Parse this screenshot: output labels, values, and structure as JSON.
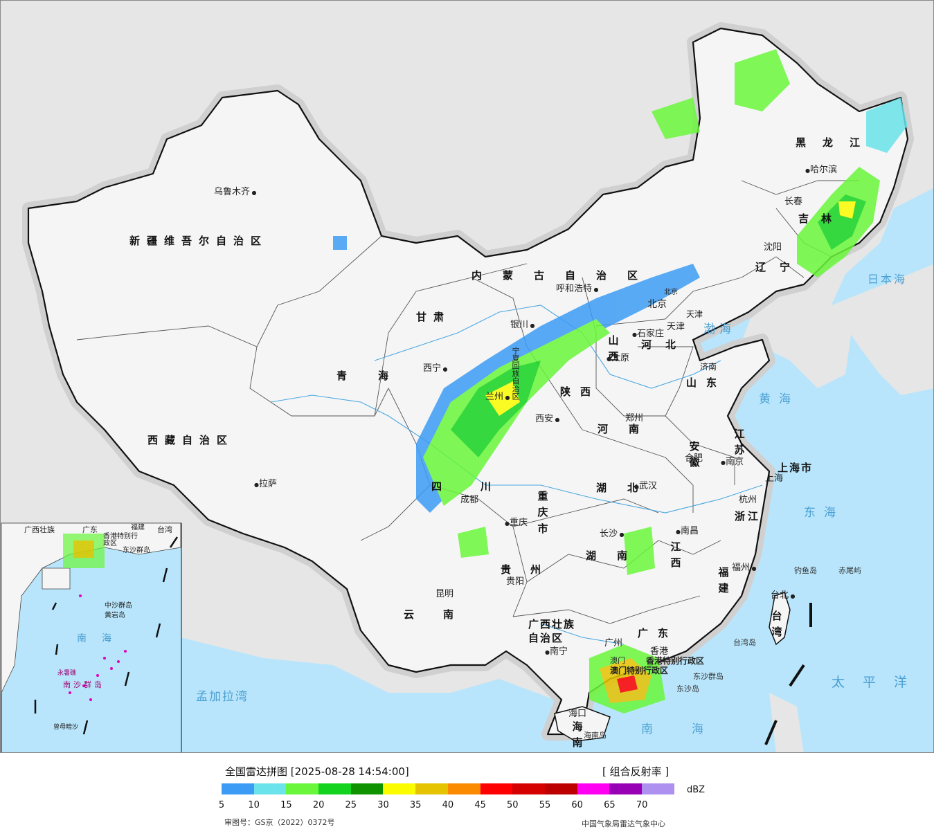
{
  "colors": {
    "ocean": "#b8e5fb",
    "land_outside": "#e6e6e6",
    "land_china": "#f5f5f5",
    "border": "#111111",
    "rivers": "#4aa8e0"
  },
  "map": {
    "provinces": [
      "新疆维吾尔自治区",
      "西藏自治区",
      "青海",
      "甘肃",
      "内蒙古自治区",
      "黑龙江",
      "吉林",
      "辽宁",
      "河北",
      "山西",
      "陕西",
      "宁夏回族自治区",
      "山东",
      "河南",
      "江苏",
      "安徽",
      "湖北",
      "四川",
      "重庆市",
      "贵州",
      "云南",
      "湖南",
      "江西",
      "浙江",
      "福建",
      "广东",
      "广西壮族自治区",
      "海南",
      "台湾",
      "上海市",
      "北京",
      "天津",
      "香港特别行政区",
      "澳门特别行政区"
    ],
    "cities": [
      "乌鲁木齐",
      "拉萨",
      "西宁",
      "兰州",
      "银川",
      "呼和浩特",
      "北京",
      "天津",
      "石家庄",
      "太原",
      "西安",
      "郑州",
      "济南",
      "哈尔滨",
      "长春",
      "沈阳",
      "合肥",
      "南京",
      "上海",
      "杭州",
      "武汉",
      "成都",
      "重庆",
      "贵阳",
      "昆明",
      "长沙",
      "南昌",
      "福州",
      "台北",
      "南宁",
      "广州",
      "香港",
      "澳门",
      "海口"
    ],
    "seas": [
      "渤海",
      "黄海",
      "东海",
      "日本海",
      "太平洋",
      "南海",
      "孟加拉湾"
    ],
    "islands": [
      "钓鱼岛",
      "赤尾屿",
      "台湾岛",
      "东沙群岛",
      "东沙岛",
      "海南岛"
    ],
    "inset": {
      "labels": [
        "广西壮族",
        "广东",
        "福建",
        "台湾",
        "香港特别行政区",
        "东沙群岛",
        "中沙群岛",
        "黄岩岛",
        "南海",
        "永暑礁",
        "南沙群岛",
        "曾母暗沙"
      ]
    }
  },
  "legend": {
    "title": "全国雷达拼图 [2025-08-28 14:54:00]",
    "product": "[ 组合反射率 ]",
    "unit": "dBZ",
    "ticks": [
      "5",
      "10",
      "15",
      "20",
      "25",
      "30",
      "35",
      "40",
      "45",
      "50",
      "55",
      "60",
      "65",
      "70"
    ],
    "colors": [
      "#3c9cf5",
      "#6ae3ea",
      "#6af73b",
      "#14d31f",
      "#0f9400",
      "#fcfc00",
      "#e6c300",
      "#fc8a00",
      "#ff0000",
      "#d50000",
      "#bc0000",
      "#ff00f2",
      "#9700b4",
      "#ad90f0"
    ]
  },
  "footer": {
    "review_no": "审图号：GS京（2022）0372号",
    "source": "中国气象局雷达气象中心"
  }
}
